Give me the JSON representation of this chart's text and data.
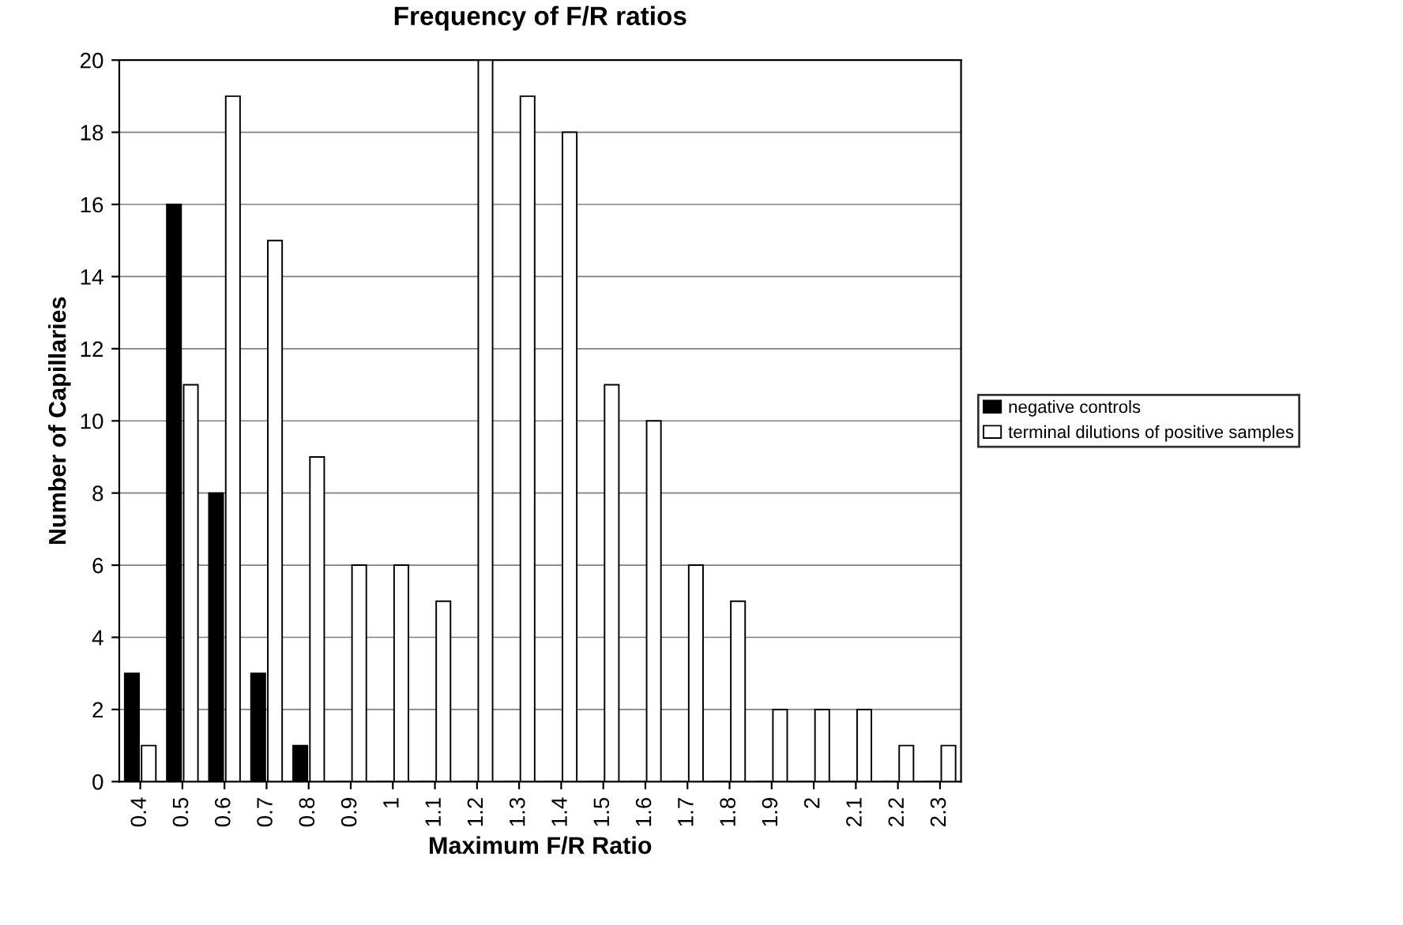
{
  "chart_data": {
    "type": "bar",
    "title": "Frequency of F/R ratios",
    "xlabel": "Maximum F/R Ratio",
    "ylabel": "Number of Capillaries",
    "categories": [
      "0.4",
      "0.5",
      "0.6",
      "0.7",
      "0.8",
      "0.9",
      "1",
      "1.1",
      "1.2",
      "1.3",
      "1.4",
      "1.5",
      "1.6",
      "1.7",
      "1.8",
      "1.9",
      "2",
      "2.1",
      "2.2",
      "2.3"
    ],
    "series": [
      {
        "name": "negative controls",
        "color": "#000000",
        "values": [
          3,
          16,
          8,
          3,
          1,
          0,
          0,
          0,
          0,
          0,
          0,
          0,
          0,
          0,
          0,
          0,
          0,
          0,
          0,
          0
        ]
      },
      {
        "name": "terminal dilutions of positive samples",
        "color": "#ffffff",
        "values": [
          1,
          11,
          19,
          15,
          9,
          6,
          6,
          5,
          20,
          19,
          18,
          11,
          10,
          6,
          5,
          2,
          2,
          2,
          1,
          1
        ]
      }
    ],
    "ylim": [
      0,
      20
    ],
    "yticks": [
      0,
      2,
      4,
      6,
      8,
      10,
      12,
      14,
      16,
      18,
      20
    ],
    "grid": "y",
    "legend": "right"
  }
}
